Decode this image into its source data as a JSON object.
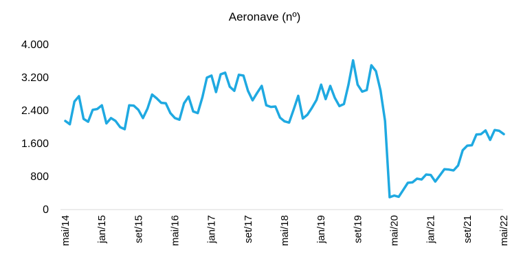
{
  "chart_data": {
    "type": "line",
    "title": "Aeronave (nº)",
    "xlabel": "",
    "ylabel": "",
    "ylim": [
      0,
      4000
    ],
    "yticks": [
      0,
      800,
      1600,
      2400,
      3200,
      4000
    ],
    "ytick_labels": [
      "0",
      "800",
      "1.600",
      "2.400",
      "3.200",
      "4.000"
    ],
    "xtick_labels": [
      "mai/14",
      "jan/15",
      "set/15",
      "mai/16",
      "jan/17",
      "set/17",
      "mai/18",
      "jan/19",
      "set/19",
      "mai/20",
      "jan/21",
      "set/21",
      "mai/22"
    ],
    "grid": false,
    "legend": "none",
    "line_color": "#1FA9E1",
    "series": [
      {
        "x": [
          "mai/14",
          "jun/14",
          "jul/14",
          "ago/14",
          "set/14",
          "out/14",
          "nov/14",
          "dez/14",
          "jan/15",
          "fev/15",
          "mar/15",
          "abr/15",
          "mai/15",
          "jun/15",
          "jul/15",
          "ago/15",
          "set/15",
          "out/15",
          "nov/15",
          "dez/15",
          "jan/16",
          "fev/16",
          "mar/16",
          "abr/16",
          "mai/16",
          "jun/16",
          "jul/16",
          "ago/16",
          "set/16",
          "out/16",
          "nov/16",
          "dez/16",
          "jan/17",
          "fev/17",
          "mar/17",
          "abr/17",
          "mai/17",
          "jun/17",
          "jul/17",
          "ago/17",
          "set/17",
          "out/17",
          "nov/17",
          "dez/17",
          "jan/18",
          "fev/18",
          "mar/18",
          "abr/18",
          "mai/18",
          "jun/18",
          "jul/18",
          "ago/18",
          "set/18",
          "out/18",
          "nov/18",
          "dez/18",
          "jan/19",
          "fev/19",
          "mar/19",
          "abr/19",
          "mai/19",
          "jun/19",
          "jul/19",
          "ago/19",
          "set/19",
          "out/19",
          "nov/19",
          "dez/19",
          "jan/20",
          "fev/20",
          "mar/20",
          "abr/20",
          "mai/20",
          "jun/20",
          "jul/20",
          "ago/20",
          "set/20",
          "out/20",
          "nov/20",
          "dez/20",
          "jan/21",
          "fev/21",
          "mar/21",
          "abr/21",
          "mai/21",
          "jun/21",
          "jul/21",
          "ago/21",
          "set/21",
          "out/21",
          "nov/21",
          "dez/21",
          "jan/22",
          "fev/22",
          "mar/22",
          "abr/22",
          "mai/22"
        ],
        "values": [
          2150,
          2070,
          2620,
          2750,
          2200,
          2130,
          2420,
          2440,
          2530,
          2090,
          2220,
          2150,
          2000,
          1950,
          2530,
          2520,
          2420,
          2220,
          2450,
          2790,
          2700,
          2590,
          2580,
          2340,
          2220,
          2180,
          2580,
          2740,
          2380,
          2340,
          2720,
          3200,
          3250,
          2850,
          3280,
          3320,
          2980,
          2880,
          3270,
          3250,
          2880,
          2650,
          2830,
          3000,
          2530,
          2490,
          2500,
          2230,
          2140,
          2110,
          2430,
          2760,
          2210,
          2300,
          2470,
          2660,
          3030,
          2680,
          3000,
          2710,
          2510,
          2560,
          3030,
          3620,
          3030,
          2860,
          2900,
          3500,
          3360,
          2890,
          2150,
          300,
          340,
          310,
          480,
          650,
          660,
          750,
          730,
          850,
          840,
          680,
          830,
          980,
          970,
          950,
          1070,
          1440,
          1550,
          1560,
          1820,
          1830,
          1920,
          1690,
          1930,
          1910,
          1830
        ]
      }
    ]
  }
}
